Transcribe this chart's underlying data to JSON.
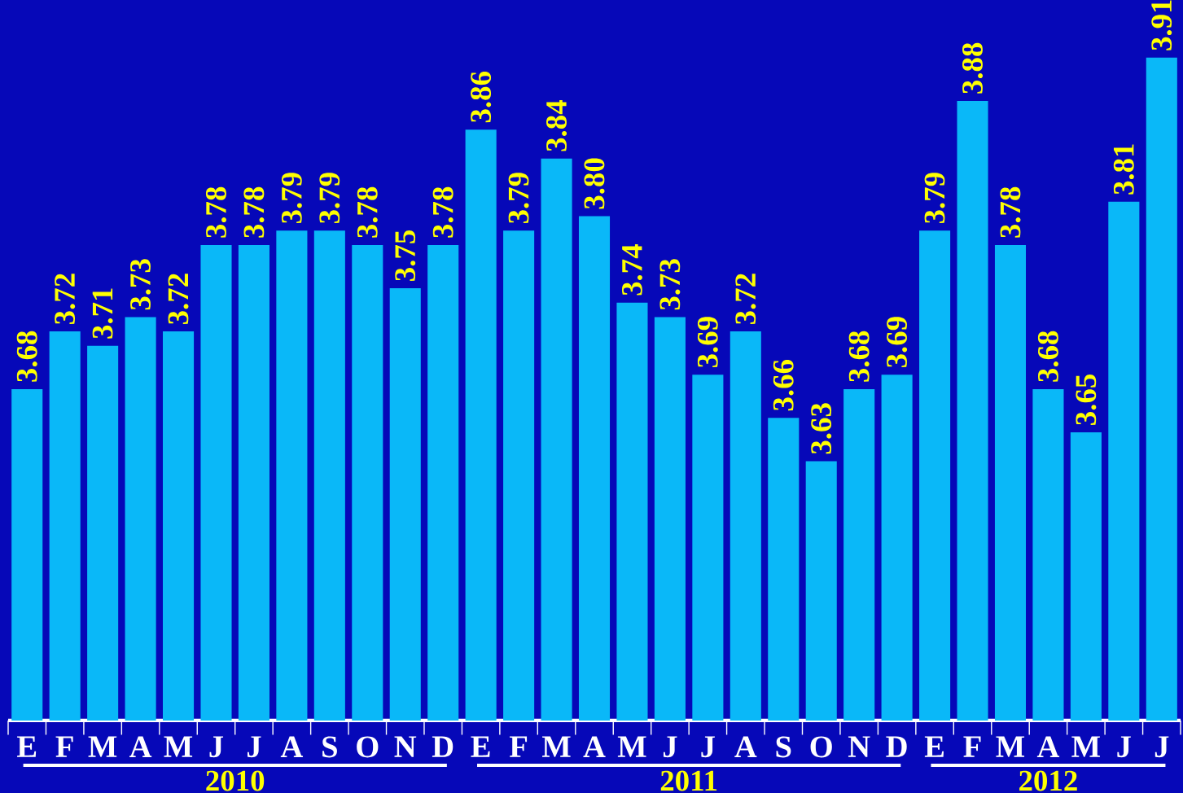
{
  "chart_data": {
    "type": "bar",
    "categories": [
      "E",
      "F",
      "M",
      "A",
      "M",
      "J",
      "J",
      "A",
      "S",
      "O",
      "N",
      "D",
      "E",
      "F",
      "M",
      "A",
      "M",
      "J",
      "J",
      "A",
      "S",
      "O",
      "N",
      "D",
      "E",
      "F",
      "M",
      "A",
      "M",
      "J",
      "J"
    ],
    "values": [
      3.68,
      3.72,
      3.71,
      3.73,
      3.72,
      3.78,
      3.78,
      3.79,
      3.79,
      3.78,
      3.75,
      3.78,
      3.86,
      3.79,
      3.84,
      3.8,
      3.74,
      3.73,
      3.69,
      3.72,
      3.66,
      3.63,
      3.68,
      3.69,
      3.79,
      3.88,
      3.78,
      3.68,
      3.65,
      3.81,
      3.91
    ],
    "color": "#0ab8f8",
    "ylim": [
      3.45,
      3.95
    ],
    "value_labels": [
      "3.68",
      "3.72",
      "3.71",
      "3.73",
      "3.72",
      "3.78",
      "3.78",
      "3.79",
      "3.79",
      "3.78",
      "3.75",
      "3.78",
      "3.86",
      "3.79",
      "3.84",
      "3.80",
      "3.74",
      "3.73",
      "3.69",
      "3.72",
      "3.66",
      "3.63",
      "3.68",
      "3.69",
      "3.79",
      "3.88",
      "3.78",
      "3.68",
      "3.65",
      "3.81",
      "3.91"
    ],
    "annotations": [
      "2010",
      "2011",
      "2012"
    ]
  }
}
